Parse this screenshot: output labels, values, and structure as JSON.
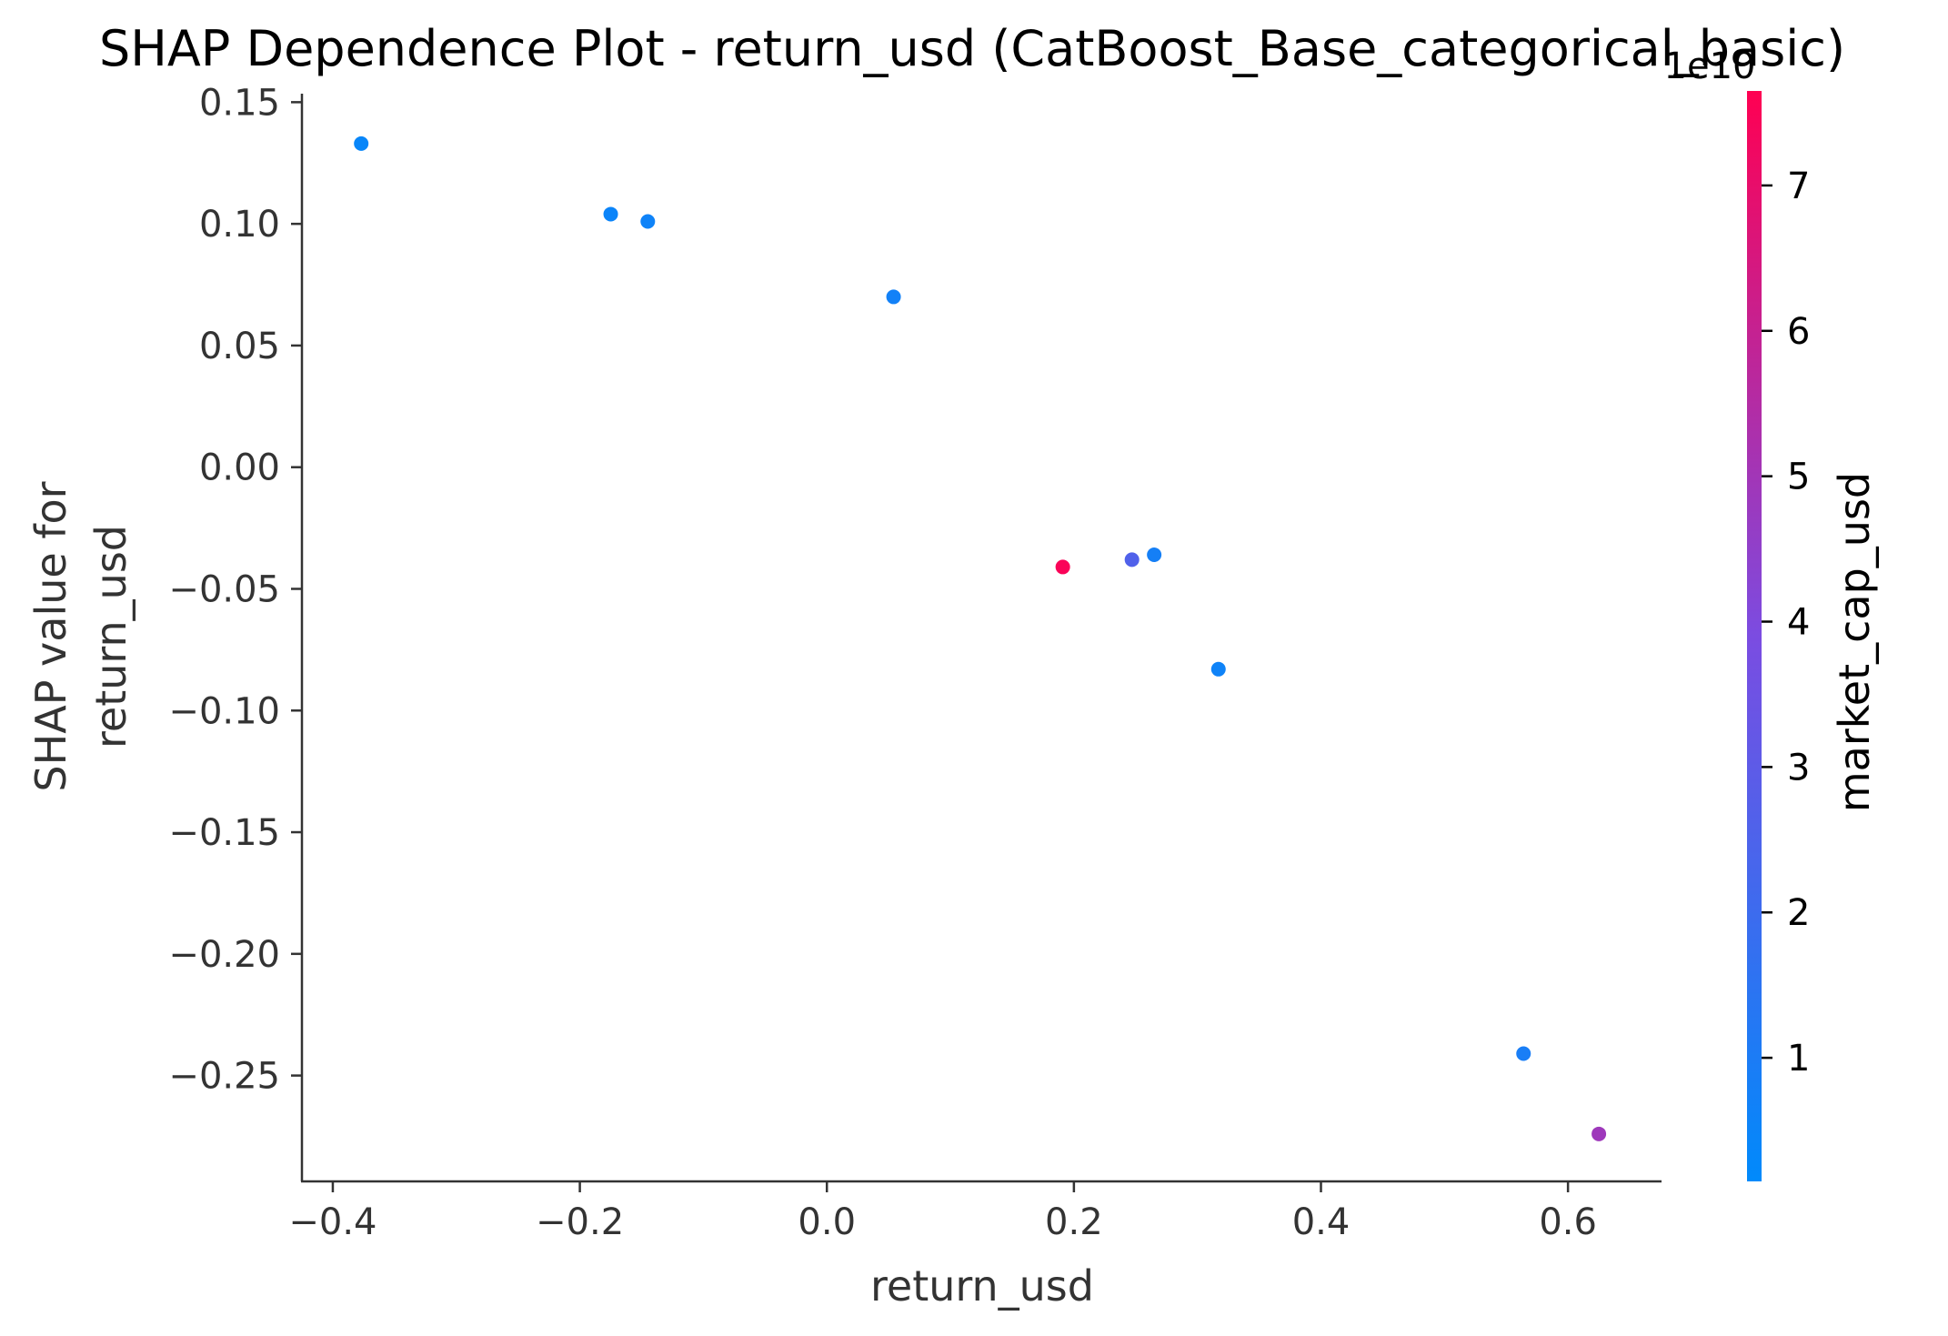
{
  "chart_data": {
    "type": "scatter",
    "title": "SHAP Dependence Plot - return_usd (CatBoost_Base_categorical_basic)",
    "xlabel": "return_usd",
    "ylabel_lines": [
      "SHAP value for",
      "return_usd"
    ],
    "xlim": [
      -0.425,
      0.675
    ],
    "ylim": [
      -0.2935,
      0.1535
    ],
    "x_ticks": [
      -0.4,
      -0.2,
      0.0,
      0.2,
      0.4,
      0.6
    ],
    "x_tick_labels": [
      "−0.4",
      "−0.2",
      "0.0",
      "0.2",
      "0.4",
      "0.6"
    ],
    "y_ticks": [
      0.15,
      0.1,
      0.05,
      0.0,
      -0.05,
      -0.1,
      -0.15,
      -0.2,
      -0.25
    ],
    "y_tick_labels": [
      "0.15",
      "0.10",
      "0.05",
      "0.00",
      "−0.05",
      "−0.10",
      "−0.15",
      "−0.20",
      "−0.25"
    ],
    "points": [
      {
        "x": -0.377,
        "y": 0.133,
        "color_value": 0.4
      },
      {
        "x": -0.175,
        "y": 0.104,
        "color_value": 0.5
      },
      {
        "x": -0.145,
        "y": 0.101,
        "color_value": 0.6
      },
      {
        "x": 0.054,
        "y": 0.07,
        "color_value": 0.7
      },
      {
        "x": 0.191,
        "y": -0.041,
        "color_value": 7.5
      },
      {
        "x": 0.247,
        "y": -0.038,
        "color_value": 2.6
      },
      {
        "x": 0.265,
        "y": -0.036,
        "color_value": 0.8
      },
      {
        "x": 0.317,
        "y": -0.083,
        "color_value": 0.6
      },
      {
        "x": 0.564,
        "y": -0.241,
        "color_value": 0.9
      },
      {
        "x": 0.625,
        "y": -0.274,
        "color_value": 4.9
      }
    ],
    "colorbar": {
      "label": "market_cap_usd",
      "offset_text": "1e10",
      "range": [
        0.15,
        7.65
      ],
      "ticks": [
        1,
        2,
        3,
        4,
        5,
        6,
        7
      ],
      "tick_labels": [
        "1",
        "2",
        "3",
        "4",
        "5",
        "6",
        "7"
      ],
      "colormap_stops": [
        "#008afb",
        "#7b4ce1",
        "#ff0052"
      ]
    },
    "grid": false,
    "legend": "colorbar-right"
  }
}
